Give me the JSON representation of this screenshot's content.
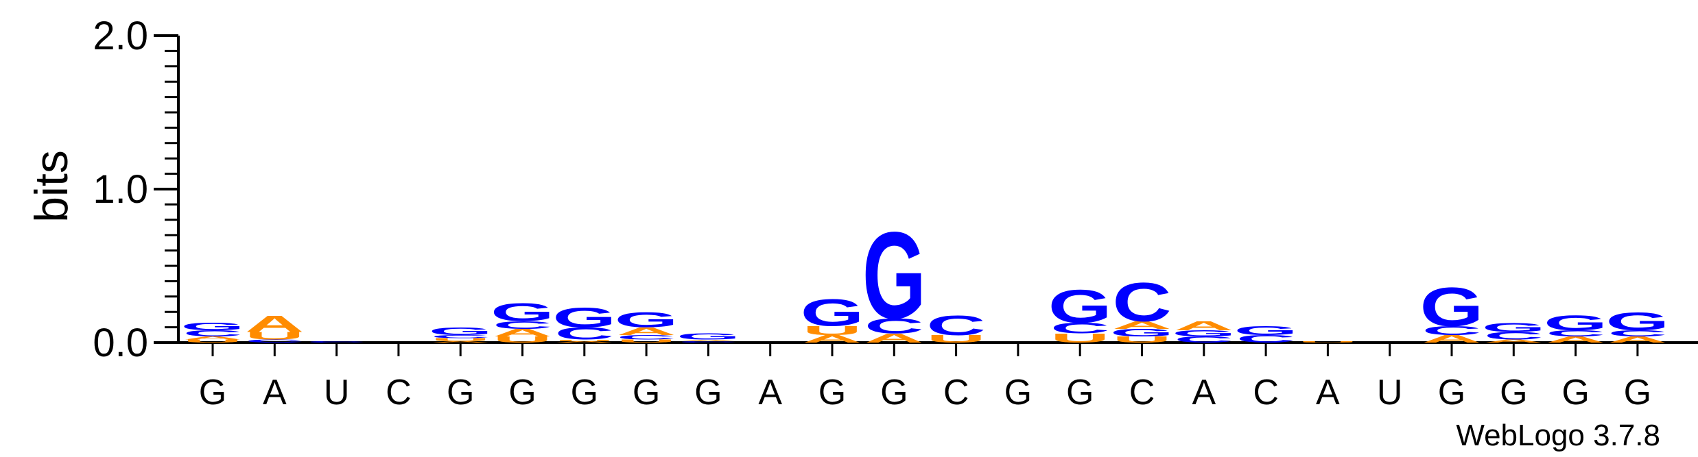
{
  "chart_data": {
    "type": "sequence-logo",
    "ylabel": "bits",
    "ylim": [
      0,
      2.0
    ],
    "yticks": [
      "0.0",
      "1.0",
      "2.0"
    ],
    "credit": "WebLogo 3.7.8",
    "colors": {
      "G": "#0000ff",
      "C": "#0000ff",
      "A": "#ff8c00",
      "U": "#ff8c00"
    },
    "positions": [
      {
        "label": "G",
        "stack": [
          [
            "U",
            0.02
          ],
          [
            "A",
            0.02
          ],
          [
            "C",
            0.04
          ],
          [
            "G",
            0.05
          ]
        ]
      },
      {
        "label": "A",
        "stack": [
          [
            "C",
            0.02
          ],
          [
            "U",
            0.05
          ],
          [
            "A",
            0.11
          ]
        ]
      },
      {
        "label": "U",
        "stack": [
          [
            "C",
            0.01
          ]
        ]
      },
      {
        "label": "C",
        "stack": []
      },
      {
        "label": "G",
        "stack": [
          [
            "A",
            0.01
          ],
          [
            "U",
            0.02
          ],
          [
            "C",
            0.02
          ],
          [
            "G",
            0.05
          ]
        ]
      },
      {
        "label": "G",
        "stack": [
          [
            "U",
            0.04
          ],
          [
            "A",
            0.05
          ],
          [
            "C",
            0.05
          ],
          [
            "G",
            0.12
          ]
        ]
      },
      {
        "label": "G",
        "stack": [
          [
            "A",
            0.01
          ],
          [
            "U",
            0.01
          ],
          [
            "C",
            0.08
          ],
          [
            "G",
            0.13
          ]
        ]
      },
      {
        "label": "G",
        "stack": [
          [
            "U",
            0.02
          ],
          [
            "C",
            0.03
          ],
          [
            "A",
            0.05
          ],
          [
            "G",
            0.1
          ]
        ]
      },
      {
        "label": "G",
        "stack": [
          [
            "C",
            0.01
          ],
          [
            "A",
            0.01
          ],
          [
            "G",
            0.04
          ]
        ]
      },
      {
        "label": "A",
        "stack": []
      },
      {
        "label": "G",
        "stack": [
          [
            "A",
            0.05
          ],
          [
            "U",
            0.06
          ],
          [
            "G",
            0.18
          ]
        ]
      },
      {
        "label": "G",
        "stack": [
          [
            "A",
            0.06
          ],
          [
            "C",
            0.1
          ],
          [
            "G",
            0.58
          ]
        ]
      },
      {
        "label": "C",
        "stack": [
          [
            "U",
            0.05
          ],
          [
            "C",
            0.13
          ]
        ]
      },
      {
        "label": "G",
        "stack": []
      },
      {
        "label": "G",
        "stack": [
          [
            "U",
            0.06
          ],
          [
            "C",
            0.07
          ],
          [
            "G",
            0.22
          ]
        ]
      },
      {
        "label": "C",
        "stack": [
          [
            "U",
            0.04
          ],
          [
            "G",
            0.05
          ],
          [
            "A",
            0.05
          ],
          [
            "C",
            0.26
          ]
        ]
      },
      {
        "label": "A",
        "stack": [
          [
            "C",
            0.04
          ],
          [
            "G",
            0.04
          ],
          [
            "A",
            0.06
          ]
        ]
      },
      {
        "label": "C",
        "stack": [
          [
            "C",
            0.05
          ],
          [
            "G",
            0.06
          ]
        ]
      },
      {
        "label": "A",
        "stack": [
          [
            "U",
            0.01
          ]
        ]
      },
      {
        "label": "U",
        "stack": []
      },
      {
        "label": "G",
        "stack": [
          [
            "A",
            0.05
          ],
          [
            "C",
            0.06
          ],
          [
            "G",
            0.26
          ]
        ]
      },
      {
        "label": "G",
        "stack": [
          [
            "A",
            0.02
          ],
          [
            "C",
            0.05
          ],
          [
            "G",
            0.06
          ]
        ]
      },
      {
        "label": "G",
        "stack": [
          [
            "A",
            0.04
          ],
          [
            "C",
            0.04
          ],
          [
            "G",
            0.1
          ]
        ]
      },
      {
        "label": "G",
        "stack": [
          [
            "A",
            0.04
          ],
          [
            "C",
            0.04
          ],
          [
            "G",
            0.12
          ]
        ]
      }
    ]
  }
}
